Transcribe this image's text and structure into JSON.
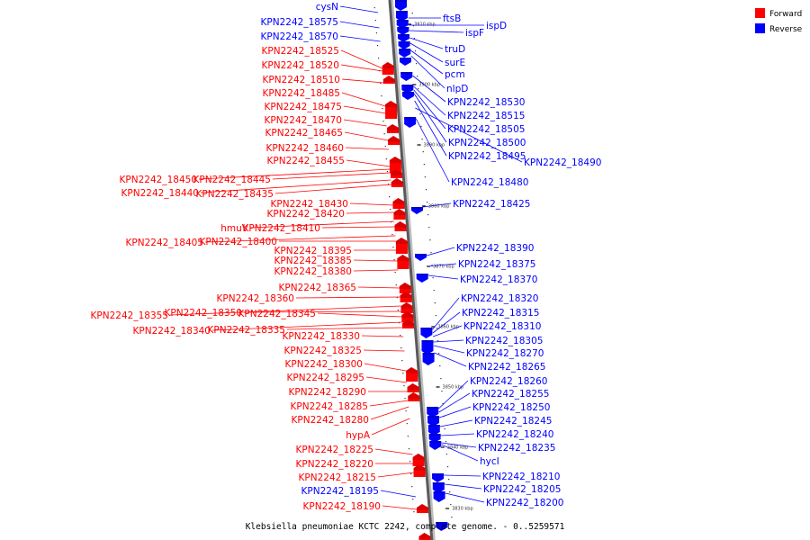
{
  "legend": {
    "forward_label": "Forward",
    "reverse_label": "Reverse",
    "forward_color": "#ff0000",
    "reverse_color": "#0000ff"
  },
  "caption": "Klebsiella pneumoniae KCTC 2242, complete genome. - 0..5259571",
  "ticks": [
    "3910 kbp",
    "3900 kbp",
    "3890 kbp",
    "3880 kbp",
    "3870 kbp",
    "3860 kbp",
    "3850 kbp",
    "3840 kbp",
    "3830 kbp"
  ],
  "left_labels": [
    {
      "text": "cysN",
      "color": "blue"
    },
    {
      "text": "KPN2242_18575",
      "color": "blue"
    },
    {
      "text": "KPN2242_18570",
      "color": "blue"
    },
    {
      "text": "KPN2242_18525",
      "color": "red"
    },
    {
      "text": "KPN2242_18520",
      "color": "red"
    },
    {
      "text": "KPN2242_18510",
      "color": "red"
    },
    {
      "text": "KPN2242_18485",
      "color": "red"
    },
    {
      "text": "KPN2242_18475",
      "color": "red"
    },
    {
      "text": "KPN2242_18470",
      "color": "red"
    },
    {
      "text": "KPN2242_18465",
      "color": "red"
    },
    {
      "text": "KPN2242_18460",
      "color": "red"
    },
    {
      "text": "KPN2242_18455",
      "color": "red"
    },
    {
      "text": "KPN2242_18450",
      "color": "red"
    },
    {
      "text": "KPN2242_18445",
      "color": "red"
    },
    {
      "text": "KPN2242_18440",
      "color": "red"
    },
    {
      "text": "KPN2242_18435",
      "color": "red"
    },
    {
      "text": "KPN2242_18430",
      "color": "red"
    },
    {
      "text": "KPN2242_18420",
      "color": "red"
    },
    {
      "text": "hmuV",
      "color": "red"
    },
    {
      "text": "KPN2242_18410",
      "color": "red"
    },
    {
      "text": "KPN2242_18405",
      "color": "red"
    },
    {
      "text": "KPN2242_18400",
      "color": "red"
    },
    {
      "text": "KPN2242_18395",
      "color": "red"
    },
    {
      "text": "KPN2242_18385",
      "color": "red"
    },
    {
      "text": "KPN2242_18380",
      "color": "red"
    },
    {
      "text": "KPN2242_18365",
      "color": "red"
    },
    {
      "text": "KPN2242_18360",
      "color": "red"
    },
    {
      "text": "KPN2242_18355",
      "color": "red"
    },
    {
      "text": "KPN2242_18350",
      "color": "red"
    },
    {
      "text": "KPN2242_18345",
      "color": "red"
    },
    {
      "text": "KPN2242_18340",
      "color": "red"
    },
    {
      "text": "KPN2242_18335",
      "color": "red"
    },
    {
      "text": "KPN2242_18330",
      "color": "red"
    },
    {
      "text": "KPN2242_18325",
      "color": "red"
    },
    {
      "text": "KPN2242_18300",
      "color": "red"
    },
    {
      "text": "KPN2242_18295",
      "color": "red"
    },
    {
      "text": "KPN2242_18290",
      "color": "red"
    },
    {
      "text": "KPN2242_18285",
      "color": "red"
    },
    {
      "text": "KPN2242_18280",
      "color": "red"
    },
    {
      "text": "hypA",
      "color": "red"
    },
    {
      "text": "KPN2242_18225",
      "color": "red"
    },
    {
      "text": "KPN2242_18220",
      "color": "red"
    },
    {
      "text": "KPN2242_18215",
      "color": "red"
    },
    {
      "text": "KPN2242_18195",
      "color": "blue"
    },
    {
      "text": "KPN2242_18190",
      "color": "red"
    }
  ],
  "right_labels": [
    {
      "text": "ftsB",
      "color": "blue"
    },
    {
      "text": "ispD",
      "color": "blue"
    },
    {
      "text": "ispF",
      "color": "blue"
    },
    {
      "text": "truD",
      "color": "blue"
    },
    {
      "text": "surE",
      "color": "blue"
    },
    {
      "text": "pcm",
      "color": "blue"
    },
    {
      "text": "nlpD",
      "color": "blue"
    },
    {
      "text": "KPN2242_18530",
      "color": "blue"
    },
    {
      "text": "KPN2242_18515",
      "color": "blue"
    },
    {
      "text": "KPN2242_18505",
      "color": "blue"
    },
    {
      "text": "KPN2242_18500",
      "color": "blue"
    },
    {
      "text": "KPN2242_18495",
      "color": "blue"
    },
    {
      "text": "KPN2242_18490",
      "color": "blue"
    },
    {
      "text": "KPN2242_18480",
      "color": "blue"
    },
    {
      "text": "KPN2242_18425",
      "color": "blue"
    },
    {
      "text": "KPN2242_18390",
      "color": "blue"
    },
    {
      "text": "KPN2242_18375",
      "color": "blue"
    },
    {
      "text": "KPN2242_18370",
      "color": "blue"
    },
    {
      "text": "KPN2242_18320",
      "color": "blue"
    },
    {
      "text": "KPN2242_18315",
      "color": "blue"
    },
    {
      "text": "KPN2242_18310",
      "color": "blue"
    },
    {
      "text": "KPN2242_18305",
      "color": "blue"
    },
    {
      "text": "KPN2242_18270",
      "color": "blue"
    },
    {
      "text": "KPN2242_18265",
      "color": "blue"
    },
    {
      "text": "KPN2242_18260",
      "color": "blue"
    },
    {
      "text": "KPN2242_18255",
      "color": "blue"
    },
    {
      "text": "KPN2242_18250",
      "color": "blue"
    },
    {
      "text": "KPN2242_18245",
      "color": "blue"
    },
    {
      "text": "KPN2242_18240",
      "color": "blue"
    },
    {
      "text": "KPN2242_18235",
      "color": "blue"
    },
    {
      "text": "hycI",
      "color": "blue"
    },
    {
      "text": "KPN2242_18210",
      "color": "blue"
    },
    {
      "text": "KPN2242_18205",
      "color": "blue"
    },
    {
      "text": "KPN2242_18200",
      "color": "blue"
    }
  ]
}
